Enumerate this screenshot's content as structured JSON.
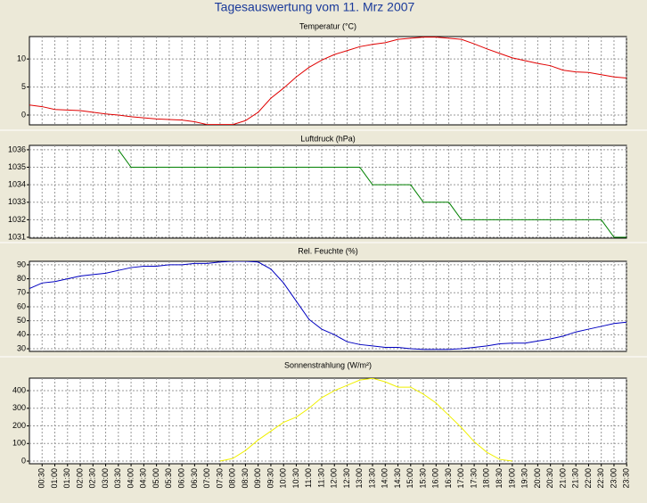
{
  "title": "Tagesauswertung vom 11. Mrz 2007",
  "chart_data": [
    {
      "type": "line",
      "title": "Temperatur (°C)",
      "color": "#e00000",
      "grid": true,
      "ylim": [
        -1.75,
        14
      ],
      "yticks": [
        0,
        5,
        10
      ],
      "values": [
        1.8,
        1.5,
        1.0,
        0.9,
        0.8,
        0.5,
        0.2,
        0,
        -0.3,
        -0.5,
        -0.7,
        -0.8,
        -0.9,
        -1.2,
        -1.7,
        -1.7,
        -1.7,
        -1.0,
        0.5,
        3.0,
        4.8,
        6.8,
        8.5,
        9.8,
        10.8,
        11.5,
        12.2,
        12.6,
        12.9,
        13.5,
        13.7,
        13.9,
        13.9,
        13.7,
        13.5,
        12.7,
        11.8,
        11.0,
        10.2,
        9.7,
        9.2,
        8.8,
        8.0,
        7.7,
        7.6,
        7.2,
        6.8,
        6.6
      ]
    },
    {
      "type": "line",
      "title": "Luftdruck (hPa)",
      "color": "#008000",
      "grid": true,
      "ylim": [
        1030.95,
        1036.25
      ],
      "yticks": [
        1031,
        1032,
        1033,
        1034,
        1035,
        1036
      ],
      "values": [
        null,
        null,
        null,
        null,
        null,
        null,
        null,
        1036,
        1035,
        1035,
        1035,
        1035,
        1035,
        1035,
        1035,
        1035,
        1035,
        1035,
        1035,
        1035,
        1035,
        1035,
        1035,
        1035,
        1035,
        1035,
        1035,
        1034,
        1034,
        1034,
        1034,
        1033,
        1033,
        1033,
        1032,
        1032,
        1032,
        1032,
        1032,
        1032,
        1032,
        1032,
        1032,
        1032,
        1032,
        1032,
        1031,
        1031
      ]
    },
    {
      "type": "line",
      "title": "Rel. Feuchte (%)",
      "color": "#0000c0",
      "grid": true,
      "ylim": [
        28.1,
        92.5
      ],
      "yticks": [
        30,
        40,
        50,
        60,
        70,
        80,
        90
      ],
      "values": [
        73,
        77,
        78,
        80,
        82,
        83,
        84,
        86,
        88,
        89,
        89,
        90,
        90,
        91,
        91,
        92,
        92.5,
        92.5,
        92,
        87,
        77,
        64,
        51,
        44,
        40,
        35,
        33,
        32,
        31,
        31,
        30,
        29.5,
        29.5,
        29.5,
        30,
        31,
        32,
        33.5,
        34,
        34,
        35.5,
        37,
        39,
        42,
        44,
        46,
        48,
        49
      ]
    },
    {
      "type": "line",
      "title": "Sonnenstrahlung (W/m²)",
      "color": "#f0f000",
      "grid": true,
      "ylim": [
        -15,
        471
      ],
      "yticks": [
        0,
        100,
        200,
        300,
        400
      ],
      "values": [
        null,
        null,
        null,
        null,
        null,
        null,
        null,
        null,
        null,
        null,
        null,
        null,
        null,
        null,
        null,
        0,
        15,
        60,
        120,
        170,
        220,
        250,
        300,
        360,
        400,
        430,
        460,
        470,
        450,
        420,
        420,
        380,
        330,
        260,
        190,
        110,
        50,
        10,
        0,
        null,
        null,
        null,
        null,
        null,
        null,
        null,
        null,
        null
      ],
      "categories": [
        null,
        "00:30",
        "01:00",
        "01:30",
        "02:00",
        "02:30",
        "03:00",
        "03:30",
        "04:00",
        "04:30",
        "05:00",
        "05:30",
        "06:00",
        "06:30",
        "07:00",
        "07:30",
        "08:00",
        "08:30",
        "09:00",
        "09:30",
        "10:00",
        "10:30",
        "11:00",
        "11:30",
        "12:00",
        "12:30",
        "13:00",
        "13:30",
        "14:00",
        "14:30",
        "15:00",
        "15:30",
        "16:00",
        "16:30",
        "17:00",
        "17:30",
        "18:00",
        "18:30",
        "19:00",
        "19:30",
        "20:00",
        "20:30",
        "21:00",
        "21:30",
        "22:00",
        "22:30",
        "23:00",
        "23:30"
      ]
    }
  ]
}
